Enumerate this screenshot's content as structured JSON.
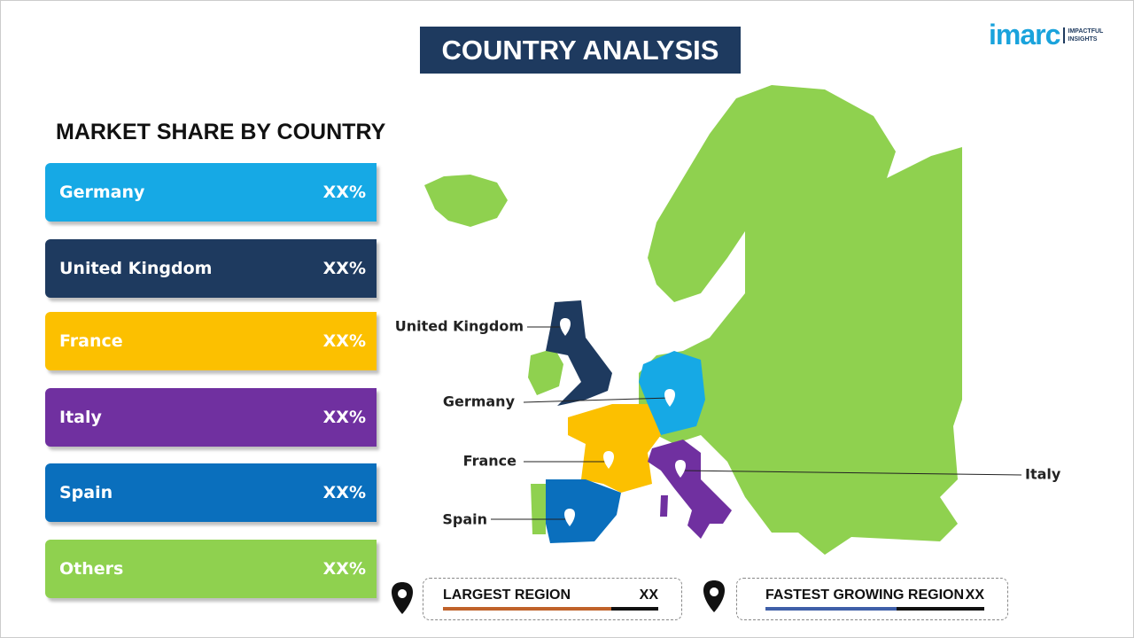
{
  "header": {
    "title": "COUNTRY ANALYSIS"
  },
  "logo": {
    "name": "imarc",
    "tagline": [
      "IMPACTFUL",
      "INSIGHTS"
    ]
  },
  "market_share": {
    "title": "MARKET SHARE BY COUNTRY",
    "rows": [
      {
        "country": "Germany",
        "value": "XX%"
      },
      {
        "country": "United Kingdom",
        "value": "XX%"
      },
      {
        "country": "France",
        "value": "XX%"
      },
      {
        "country": "Italy",
        "value": "XX%"
      },
      {
        "country": "Spain",
        "value": "XX%"
      },
      {
        "country": "Others",
        "value": "XX%"
      }
    ]
  },
  "map": {
    "labels": [
      "United Kingdom",
      "Germany",
      "France",
      "Italy",
      "Spain"
    ]
  },
  "summary": [
    {
      "label": "LARGEST REGION",
      "value": "XX"
    },
    {
      "label": "FASTEST GROWING REGION",
      "value": "XX"
    }
  ]
}
